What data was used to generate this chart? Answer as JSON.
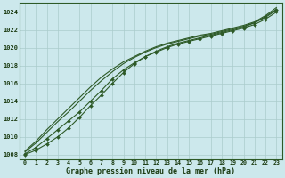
{
  "bg_color": "#cce8ec",
  "grid_color": "#aacccc",
  "line_color": "#2d5a27",
  "text_color": "#1a3a10",
  "xlabel": "Graphe pression niveau de la mer (hPa)",
  "xlim": [
    -0.5,
    23.5
  ],
  "ylim": [
    1007.5,
    1025.0
  ],
  "yticks": [
    1008,
    1010,
    1012,
    1014,
    1016,
    1018,
    1020,
    1022,
    1024
  ],
  "xticks": [
    0,
    1,
    2,
    3,
    4,
    5,
    6,
    7,
    8,
    9,
    10,
    11,
    12,
    13,
    14,
    15,
    16,
    17,
    18,
    19,
    20,
    21,
    22,
    23
  ],
  "series_with_markers": [
    [
      1008.1,
      1008.8,
      1009.8,
      1010.8,
      1011.8,
      1012.8,
      1014.0,
      1015.2,
      1016.5,
      1017.5,
      1018.3,
      1019.0,
      1019.5,
      1020.0,
      1020.4,
      1020.7,
      1021.0,
      1021.3,
      1021.6,
      1021.9,
      1022.2,
      1022.6,
      1023.2,
      1024.0
    ],
    [
      1008.0,
      1008.5,
      1009.2,
      1010.0,
      1011.0,
      1012.2,
      1013.5,
      1014.7,
      1016.0,
      1017.2,
      1018.2,
      1019.0,
      1019.6,
      1020.1,
      1020.5,
      1020.8,
      1021.1,
      1021.4,
      1021.7,
      1022.0,
      1022.3,
      1022.8,
      1023.4,
      1024.2
    ]
  ],
  "series_no_markers": [
    [
      1008.3,
      1009.3,
      1010.5,
      1011.7,
      1012.8,
      1014.0,
      1015.2,
      1016.3,
      1017.3,
      1018.2,
      1018.9,
      1019.5,
      1020.0,
      1020.4,
      1020.7,
      1021.0,
      1021.3,
      1021.5,
      1021.8,
      1022.1,
      1022.4,
      1022.8,
      1023.5,
      1024.3
    ],
    [
      1008.4,
      1009.5,
      1010.8,
      1012.0,
      1013.2,
      1014.4,
      1015.6,
      1016.7,
      1017.6,
      1018.4,
      1019.0,
      1019.6,
      1020.1,
      1020.5,
      1020.8,
      1021.1,
      1021.4,
      1021.6,
      1021.9,
      1022.2,
      1022.5,
      1022.9,
      1023.6,
      1024.5
    ]
  ]
}
